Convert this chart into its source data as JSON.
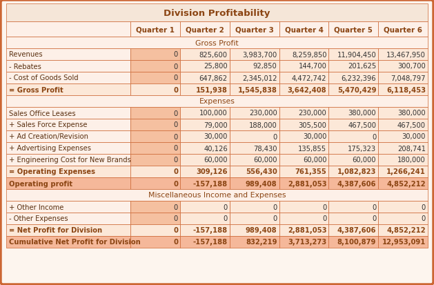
{
  "title": "Division Profitability",
  "columns": [
    "",
    "Quarter 1",
    "Quarter 2",
    "Quarter 3",
    "Quarter 4",
    "Quarter 5",
    "Quarter 6"
  ],
  "section_headers": {
    "gross_profit": "Gross Profit",
    "expenses": "Expenses",
    "misc": "Miscellaneous Income and Expenses"
  },
  "rows": [
    {
      "label": "Revenues",
      "values": [
        "0",
        "825,600",
        "3,983,700",
        "8,259,850",
        "11,904,450",
        "13,467,950"
      ],
      "type": "normal"
    },
    {
      "label": "- Rebates",
      "values": [
        "0",
        "25,800",
        "92,850",
        "144,700",
        "201,625",
        "300,700"
      ],
      "type": "normal"
    },
    {
      "label": "- Cost of Goods Sold",
      "values": [
        "0",
        "647,862",
        "2,345,012",
        "4,472,742",
        "6,232,396",
        "7,048,797"
      ],
      "type": "normal"
    },
    {
      "label": "= Gross Profit",
      "values": [
        "0",
        "151,938",
        "1,545,838",
        "3,642,408",
        "5,470,429",
        "6,118,453"
      ],
      "type": "subtotal"
    },
    {
      "label": "Sales Office Leases",
      "values": [
        "0",
        "100,000",
        "230,000",
        "230,000",
        "380,000",
        "380,000"
      ],
      "type": "normal"
    },
    {
      "label": "+ Sales Force Expense",
      "values": [
        "0",
        "79,000",
        "188,000",
        "305,500",
        "467,500",
        "467,500"
      ],
      "type": "normal"
    },
    {
      "label": "+ Ad Creation/Revision",
      "values": [
        "0",
        "30,000",
        "0",
        "30,000",
        "0",
        "30,000"
      ],
      "type": "normal"
    },
    {
      "label": "+ Advertising Expenses",
      "values": [
        "0",
        "40,126",
        "78,430",
        "135,855",
        "175,323",
        "208,741"
      ],
      "type": "normal"
    },
    {
      "label": "+ Engineering Cost for New Brands",
      "values": [
        "0",
        "60,000",
        "60,000",
        "60,000",
        "60,000",
        "180,000"
      ],
      "type": "normal"
    },
    {
      "label": "= Operating Expenses",
      "values": [
        "0",
        "309,126",
        "556,430",
        "761,355",
        "1,082,823",
        "1,266,241"
      ],
      "type": "subtotal"
    },
    {
      "label": "Operating profit",
      "values": [
        "0",
        "-157,188",
        "989,408",
        "2,881,053",
        "4,387,606",
        "4,852,212"
      ],
      "type": "highlight"
    },
    {
      "label": "+ Other Income",
      "values": [
        "0",
        "0",
        "0",
        "0",
        "0",
        "0"
      ],
      "type": "normal"
    },
    {
      "label": "- Other Expenses",
      "values": [
        "0",
        "0",
        "0",
        "0",
        "0",
        "0"
      ],
      "type": "normal"
    },
    {
      "label": "= Net Profit for Division",
      "values": [
        "0",
        "-157,188",
        "989,408",
        "2,881,053",
        "4,387,606",
        "4,852,212"
      ],
      "type": "subtotal"
    },
    {
      "label": "Cumulative Net Profit for Division",
      "values": [
        "0",
        "-157,188",
        "832,219",
        "3,713,273",
        "8,100,879",
        "12,953,091"
      ],
      "type": "highlight"
    }
  ],
  "colors": {
    "outer_bg": "#fdf5ee",
    "outer_border": "#cc6633",
    "title_bg": "#f5e6d8",
    "title_text": "#8B4513",
    "header_bg": "#fdf0e8",
    "header_text": "#8B4513",
    "section_header_bg": "#fdf0e8",
    "section_header_text": "#8B4513",
    "normal_label_bg": "#fdf0e8",
    "normal_value_bg": "#fce8d8",
    "normal_text": "#5a3010",
    "normal_val_text": "#333333",
    "subtotal_label_bg": "#fce8d8",
    "subtotal_value_bg": "#fce8d8",
    "subtotal_text": "#8B4513",
    "highlight_bg": "#f5b89a",
    "highlight_text": "#8B4513",
    "col1_bg": "#f5c0a0",
    "border": "#cc6633"
  }
}
